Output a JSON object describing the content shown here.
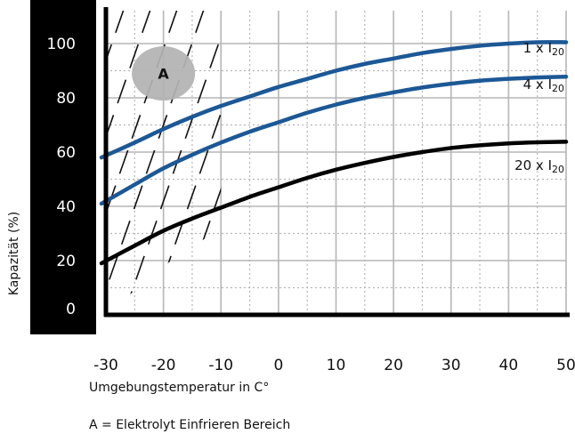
{
  "chart_data": {
    "type": "line",
    "xlabel": "Umgebungstemperatur in C°",
    "ylabel": "Kapazität (%)",
    "xlim": [
      -30,
      50
    ],
    "ylim": [
      0,
      105
    ],
    "x_ticks": [
      "-30",
      "-20",
      "-10",
      "0",
      "10",
      "20",
      "30",
      "40",
      "50"
    ],
    "y_ticks": [
      "0",
      "20",
      "40",
      "60",
      "80",
      "100"
    ],
    "grid": true,
    "x": [
      -30,
      -25,
      -20,
      -15,
      -10,
      -5,
      0,
      5,
      10,
      15,
      20,
      25,
      30,
      35,
      40,
      45,
      50
    ],
    "series": [
      {
        "name": "1 x I",
        "subscript": "20",
        "color": "#1c5896",
        "values": [
          58,
          63.5,
          68.5,
          73,
          77,
          80.5,
          84,
          87,
          90,
          92.5,
          94.5,
          96.5,
          98,
          99.2,
          100,
          100.5,
          100.5
        ]
      },
      {
        "name": "4 x I",
        "subscript": "20",
        "color": "#1c5896",
        "values": [
          41,
          48,
          54,
          59,
          63.5,
          67.5,
          71,
          74.5,
          77.5,
          80,
          82,
          83.8,
          85.2,
          86.3,
          87,
          87.5,
          87.8
        ]
      },
      {
        "name": "20 x I",
        "subscript": "20",
        "color": "#000000",
        "values": [
          19,
          25.5,
          31,
          35.5,
          39.5,
          43.5,
          47,
          50.5,
          53.5,
          56,
          58.2,
          60,
          61.5,
          62.5,
          63.2,
          63.6,
          63.8
        ]
      }
    ],
    "region_a": {
      "label": "A",
      "center_x": -20,
      "center_y": 89,
      "radius_x": 5.5,
      "radius_y": 10
    },
    "note": "A = Elektrolyt Einfrieren Bereich"
  }
}
